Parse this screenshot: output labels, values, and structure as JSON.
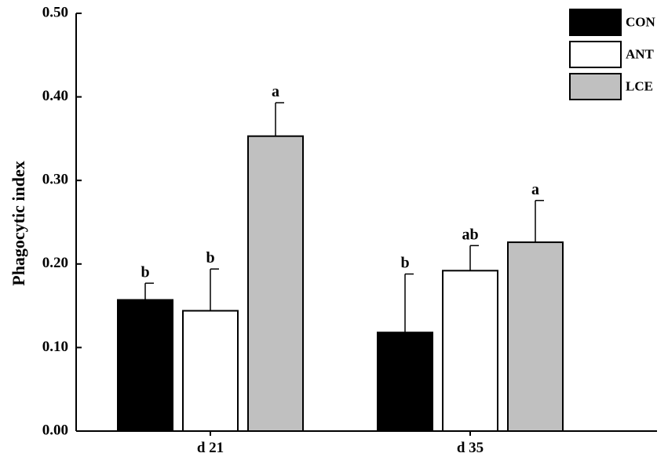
{
  "chart_data": {
    "type": "bar",
    "ylabel": "Phagocytic index",
    "ylim": [
      0,
      0.5
    ],
    "yticks": [
      "0.00",
      "0.10",
      "0.20",
      "0.30",
      "0.40",
      "0.50"
    ],
    "categories": [
      "d 21",
      "d 35"
    ],
    "legend_position": "top-right",
    "grid": false,
    "series": [
      {
        "name": "CON",
        "color": "#000000",
        "values": [
          0.157,
          0.118
        ],
        "errors": [
          0.02,
          0.07
        ],
        "labels": [
          "b",
          "b"
        ]
      },
      {
        "name": "ANT",
        "color": "#ffffff",
        "values": [
          0.144,
          0.192
        ],
        "errors": [
          0.05,
          0.03
        ],
        "labels": [
          "b",
          "ab"
        ]
      },
      {
        "name": "LCE",
        "color": "#c0c0c0",
        "values": [
          0.353,
          0.226
        ],
        "errors": [
          0.04,
          0.05
        ],
        "labels": [
          "a",
          "a"
        ]
      }
    ]
  }
}
